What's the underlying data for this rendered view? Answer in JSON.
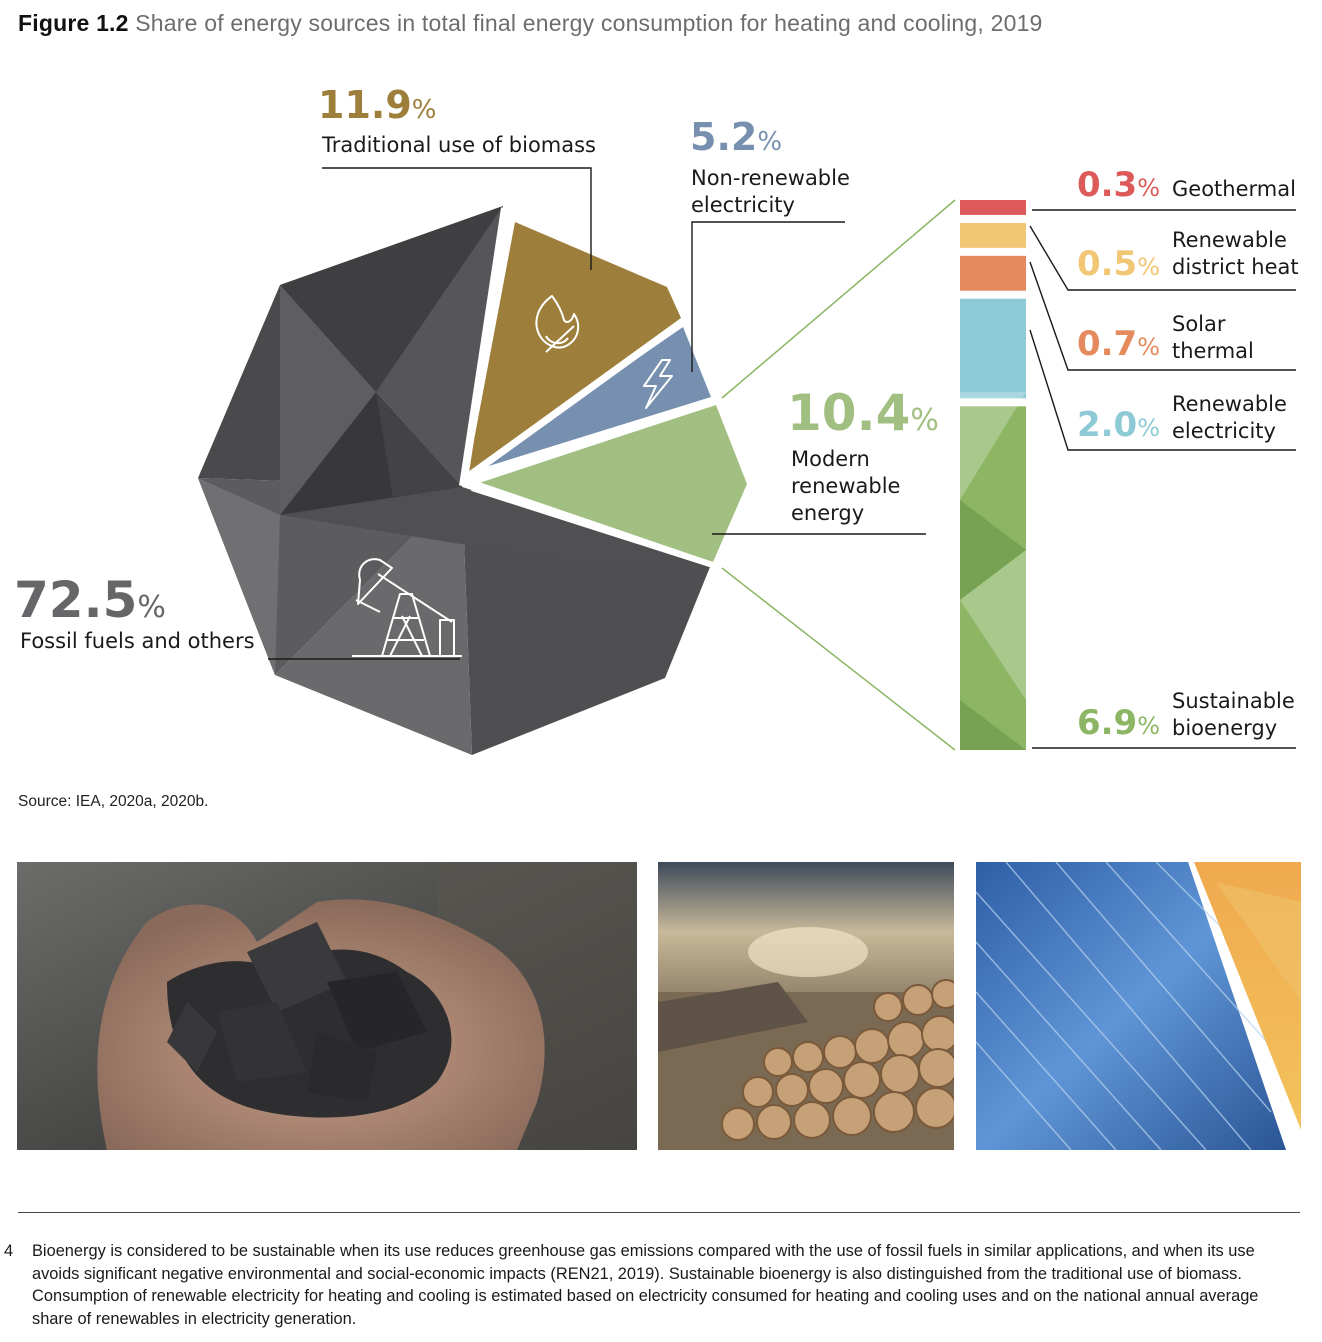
{
  "figure": {
    "label": "Figure 1.2",
    "title": "Share of energy sources in total final energy consumption for heating and cooling, 2019"
  },
  "chart_data": {
    "type": "pie",
    "unit": "%",
    "slices": [
      {
        "value": 72.5,
        "label": "Fossil fuels and others",
        "color": "#57575a",
        "icon": "oil-pump-icon"
      },
      {
        "value": 11.9,
        "label": "Traditional use of biomass",
        "color": "#9d7e3a",
        "icon": "flame-icon"
      },
      {
        "value": 5.2,
        "label": "Non-renewable electricity",
        "color": "#7790b0",
        "icon": "lightning-icon"
      },
      {
        "value": 10.4,
        "label": "Modern renewable energy",
        "color": "#a0bf80",
        "icon": ""
      }
    ],
    "breakdown": {
      "of": "Modern renewable energy",
      "items": [
        {
          "value": 0.3,
          "label": "Geothermal",
          "color": "#dc5a5a"
        },
        {
          "value": 0.5,
          "label": "Renewable district heat",
          "color": "#f1c674"
        },
        {
          "value": 0.7,
          "label": "Solar thermal",
          "color": "#e58a5c"
        },
        {
          "value": 2.0,
          "label": "Renewable electricity",
          "color": "#8dcad5"
        },
        {
          "value": 6.9,
          "label": "Sustainable bioenergy",
          "color": "#8cb664"
        }
      ]
    }
  },
  "labels": {
    "fossil_value": "72.5",
    "fossil_label": "Fossil fuels and others",
    "biomass_value": "11.9",
    "biomass_label": "Traditional use of biomass",
    "nonren_value": "5.2",
    "nonren_line1": "Non-renewable",
    "nonren_line2": "electricity",
    "modern_value": "10.4",
    "modern_line1": "Modern",
    "modern_line2": "renewable",
    "modern_line3": "energy",
    "geo_value": "0.3",
    "geo_label": "Geothermal",
    "dh_value": "0.5",
    "dh_line1": "Renewable",
    "dh_line2": "district heat",
    "solar_value": "0.7",
    "solar_line1": "Solar",
    "solar_line2": "thermal",
    "re_value": "2.0",
    "re_line1": "Renewable",
    "re_line2": "electricity",
    "bio_value": "6.9",
    "bio_line1": "Sustainable",
    "bio_line2": "bioenergy",
    "pct": "%"
  },
  "source": "Source: IEA, 2020a, 2020b.",
  "footnote": {
    "number": "4",
    "text": "Bioenergy is considered to be sustainable when its use reduces greenhouse gas emissions compared with the use of fossil fuels in similar applications, and when its use avoids significant negative environmental and social-economic impacts (REN21, 2019). Sustainable bioenergy is also distinguished from the traditional use of biomass. Consumption of renewable electricity for heating and cooling is estimated based on electricity consumed for heating and cooling uses and on the national annual average share of renewables in electricity generation."
  }
}
